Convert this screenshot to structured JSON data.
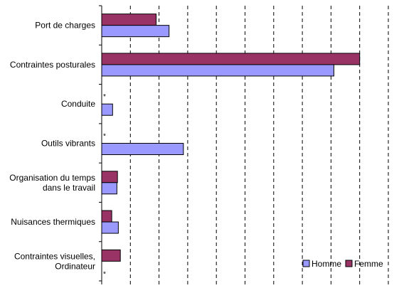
{
  "chart_data": {
    "type": "bar",
    "orientation": "horizontal",
    "categories": [
      [
        "Port de charges"
      ],
      [
        "Contraintes posturales"
      ],
      [
        "Conduite"
      ],
      [
        "Outils vibrants"
      ],
      [
        "Organisation du temps",
        "dans le travail"
      ],
      [
        "Nuisances thermiques"
      ],
      [
        "Contraintes visuelles,",
        "Ordinateur"
      ]
    ],
    "series": [
      {
        "name": "Femme",
        "color": "#993366",
        "values": [
          19,
          90,
          null,
          null,
          5.5,
          3.5,
          6.5
        ]
      },
      {
        "name": "Homme",
        "color": "#9999ff",
        "values": [
          23.5,
          81,
          3.8,
          28.5,
          5.3,
          5.8,
          null
        ]
      }
    ],
    "missing_marker": "*",
    "xlim": [
      0,
      100
    ],
    "grid_x": true,
    "grid_style": "dashed",
    "legend_position": "bottom-right",
    "legend_order": [
      "Homme",
      "Femme"
    ]
  }
}
